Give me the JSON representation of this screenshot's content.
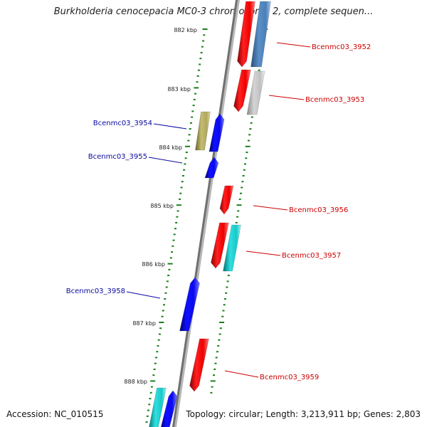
{
  "title": "Burkholderia cenocepacia MC0-3 chromosome 2, complete sequen...",
  "accession": "Accession: NC_010515",
  "topology": "Topology: circular; Length: 3,213,911 bp; Genes: 2,803",
  "colors": {
    "backbone": "#808080",
    "tick": "#1a7f1a",
    "forward_label": "#0a0aa0",
    "reverse_label": "#cc0000",
    "red": "#ee0000",
    "blue": "#0a0aee",
    "steelblue": "#4a7fb8",
    "lightgray": "#c4c4c4",
    "olive": "#b0a860",
    "cyan": "#18c8c8"
  },
  "kbp_labels": [
    "882 kbp",
    "883 kbp",
    "884 kbp",
    "885 kbp",
    "886 kbp",
    "887 kbp",
    "888 kbp"
  ],
  "gene_labels": [
    {
      "text": "Bcenmc03_3952",
      "side": "right"
    },
    {
      "text": "Bcenmc03_3953",
      "side": "right"
    },
    {
      "text": "Bcenmc03_3954",
      "side": "left"
    },
    {
      "text": "Bcenmc03_3955",
      "side": "left"
    },
    {
      "text": "Bcenmc03_3956",
      "side": "right"
    },
    {
      "text": "Bcenmc03_3957",
      "side": "right"
    },
    {
      "text": "Bcenmc03_3958",
      "side": "left"
    },
    {
      "text": "Bcenmc03_3959",
      "side": "right"
    }
  ]
}
